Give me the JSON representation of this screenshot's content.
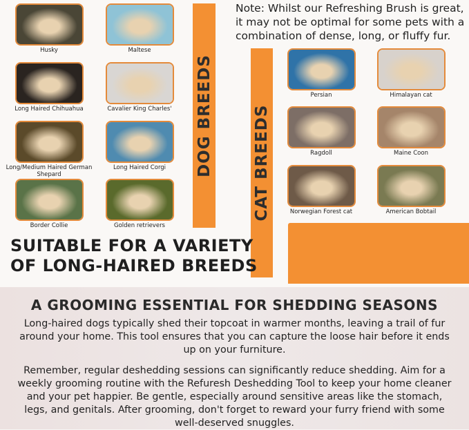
{
  "note": "Note: Whilst our Refreshing Brush is great, it may not be optimal for some pets with a combination of dense, long, or fluffy fur.",
  "dog_section": {
    "title": "DOG BREEDS",
    "breeds": [
      {
        "label": "Husky",
        "color": "#4a4636"
      },
      {
        "label": "Maltese",
        "color": "#8fc3d6"
      },
      {
        "label": "Long Haired Chihuahua",
        "color": "#2a2420"
      },
      {
        "label": "Cavalier King Charles'",
        "color": "#d9d6d3"
      },
      {
        "label": "Long/Medium Haired German Shepard",
        "color": "#5b4a2a"
      },
      {
        "label": "Long Haired Corgi",
        "color": "#4f8bb0"
      },
      {
        "label": "Border Collie",
        "color": "#5a7348"
      },
      {
        "label": "Golden retrievers",
        "color": "#5a6a2c"
      }
    ]
  },
  "cat_section": {
    "title": "CAT BREEDS",
    "breeds": [
      {
        "label": "Persian",
        "color": "#2f73a8"
      },
      {
        "label": "Himalayan cat",
        "color": "#d8d2cc"
      },
      {
        "label": "Ragdoll",
        "color": "#7d6e66"
      },
      {
        "label": "Maine Coon",
        "color": "#a5856a"
      },
      {
        "label": "Norwegian Forest cat",
        "color": "#6e5a48"
      },
      {
        "label": "American Bobtail",
        "color": "#7a7a52"
      }
    ]
  },
  "headline": {
    "line1": "SUITABLE FOR A VARIETY",
    "line2": "OF LONG-HAIRED BREEDS"
  },
  "grooming": {
    "title": "A GROOMING ESSENTIAL FOR SHEDDING SEASONS",
    "para1": "Long-haired dogs typically shed their topcoat in warmer months, leaving a trail of fur around your home. This tool ensures that you can capture the loose hair before it ends up on your furniture.",
    "para2": "Remember, regular deshedding sessions can significantly reduce shedding. Aim for a weekly grooming routine with the Refuresh Deshedding Tool to keep your home cleaner and your pet happier. Be gentle, especially around sensitive areas like the stomach, legs, and genitals. After grooming, don't forget to reward your furry friend with some well-deserved snuggles."
  },
  "colors": {
    "accent": "#f39033",
    "frame": "#e48a3a"
  }
}
